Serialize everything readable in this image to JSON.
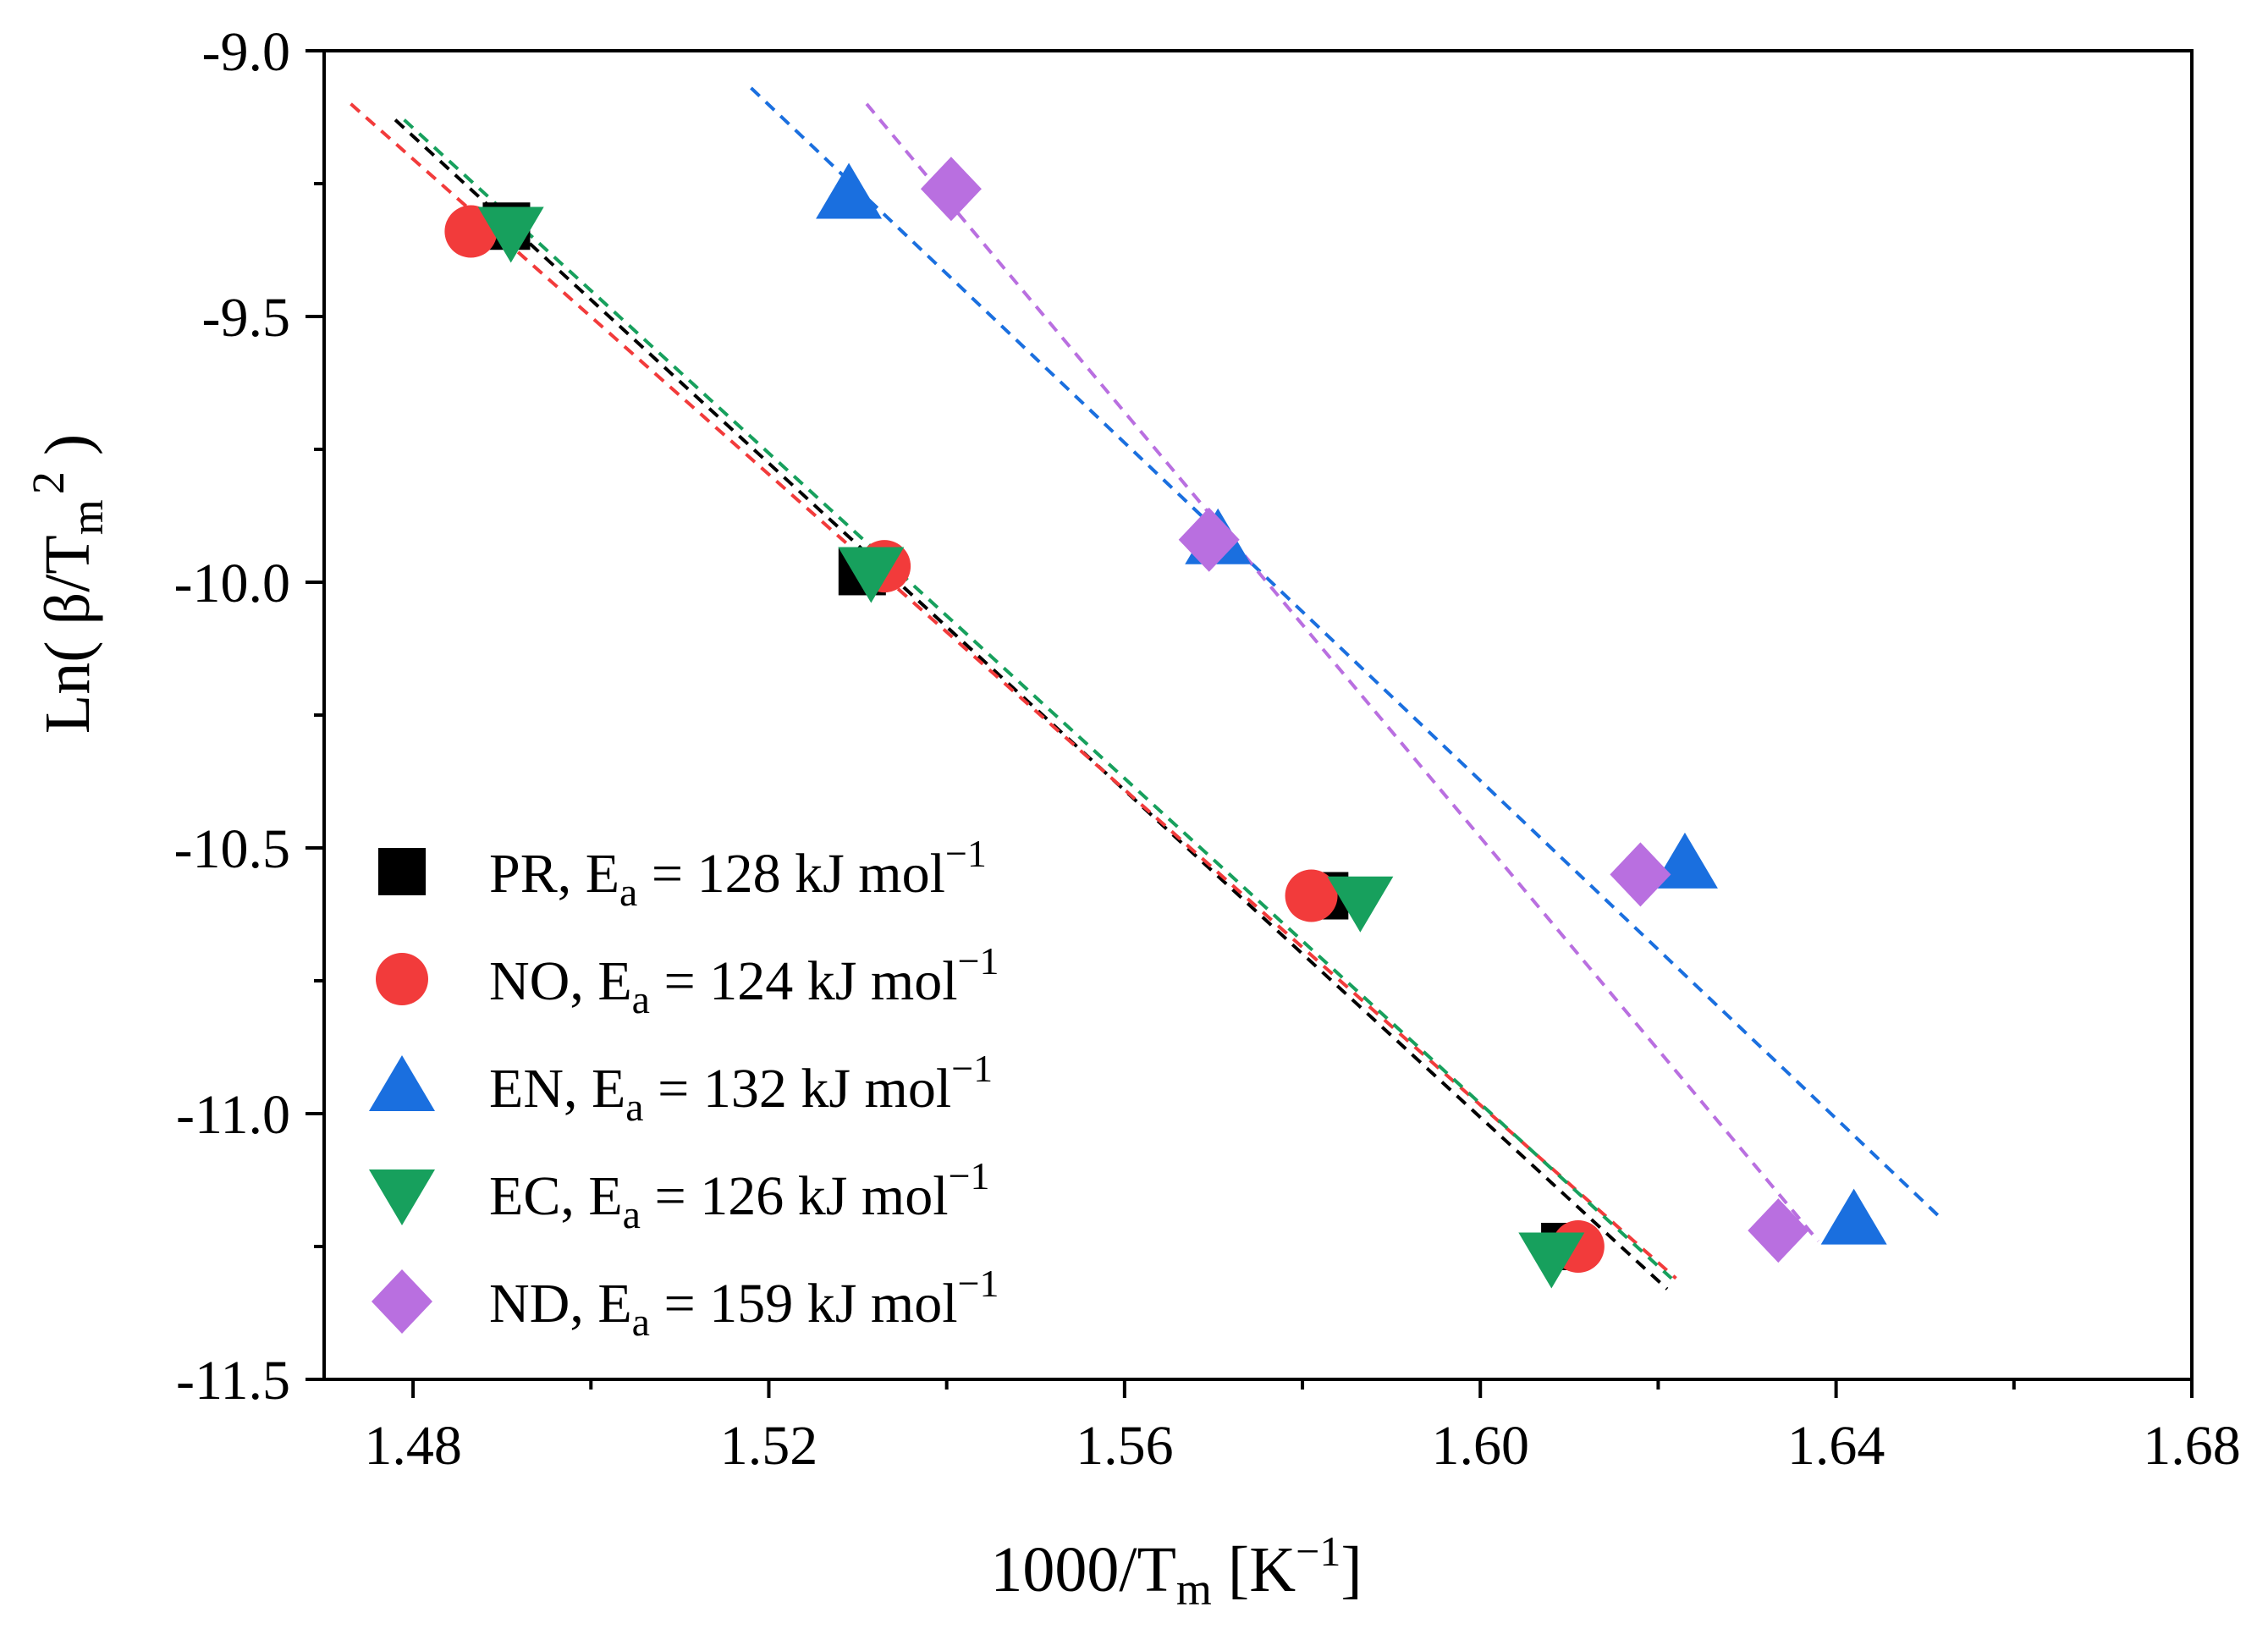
{
  "chart_data": {
    "type": "scatter",
    "title": "",
    "xlabel": {
      "main": "1000/T",
      "sub": "m",
      "tail": " [K",
      "sup": "−1",
      "close": "]"
    },
    "ylabel": {
      "main": "Ln( β/T",
      "sub": "m",
      "sup": "2",
      "close": " )"
    },
    "xlim": [
      1.47,
      1.68
    ],
    "ylim": [
      -11.5,
      -9.0
    ],
    "xticks": [
      1.48,
      1.52,
      1.56,
      1.6,
      1.64,
      1.68
    ],
    "xtick_labels": [
      "1.48",
      "1.52",
      "1.56",
      "1.60",
      "1.64",
      "1.68"
    ],
    "yticks": [
      -9.0,
      -9.5,
      -10.0,
      -10.5,
      -11.0,
      -11.5
    ],
    "ytick_labels": [
      "-9.0",
      "-9.5",
      "-10.0",
      "-10.5",
      "-11.0",
      "-11.5"
    ],
    "legend_position": "bottom-left",
    "series": [
      {
        "name": "PR",
        "ea_value": "128",
        "marker": "square",
        "color": "#000000",
        "x": [
          1.4905,
          1.5305,
          1.5825,
          1.6095
        ],
        "y": [
          -9.33,
          -9.98,
          -10.59,
          -11.25
        ],
        "fit_x": [
          1.478,
          1.621
        ],
        "fit_y": [
          -9.13,
          -11.33
        ]
      },
      {
        "name": "NO",
        "ea_value": "124",
        "marker": "circle",
        "color": "#f23b3b",
        "x": [
          1.4865,
          1.533,
          1.581,
          1.611
        ],
        "y": [
          -9.34,
          -9.97,
          -10.59,
          -11.25
        ],
        "fit_x": [
          1.473,
          1.622
        ],
        "fit_y": [
          -9.1,
          -11.31
        ]
      },
      {
        "name": "EN",
        "ea_value": "132",
        "marker": "triangle-up",
        "color": "#1a6fdf",
        "x": [
          1.529,
          1.5705,
          1.623,
          1.642
        ],
        "y": [
          -9.27,
          -9.92,
          -10.53,
          -11.2
        ],
        "fit_x": [
          1.518,
          1.652
        ],
        "fit_y": [
          -9.07,
          -11.2
        ]
      },
      {
        "name": "EC",
        "ea_value": "126",
        "marker": "triangle-down",
        "color": "#17a05d",
        "x": [
          1.491,
          1.5315,
          1.5865,
          1.608
        ],
        "y": [
          -9.34,
          -9.98,
          -10.6,
          -11.27
        ],
        "fit_x": [
          1.479,
          1.6215
        ],
        "fit_y": [
          -9.13,
          -11.31
        ]
      },
      {
        "name": "ND",
        "ea_value": "159",
        "marker": "diamond",
        "color": "#b96fe0",
        "x": [
          1.5405,
          1.5695,
          1.618,
          1.6335
        ],
        "y": [
          -9.26,
          -9.92,
          -10.55,
          -11.22
        ],
        "fit_x": [
          1.531,
          1.638
        ],
        "fit_y": [
          -9.1,
          -11.24
        ]
      }
    ]
  }
}
